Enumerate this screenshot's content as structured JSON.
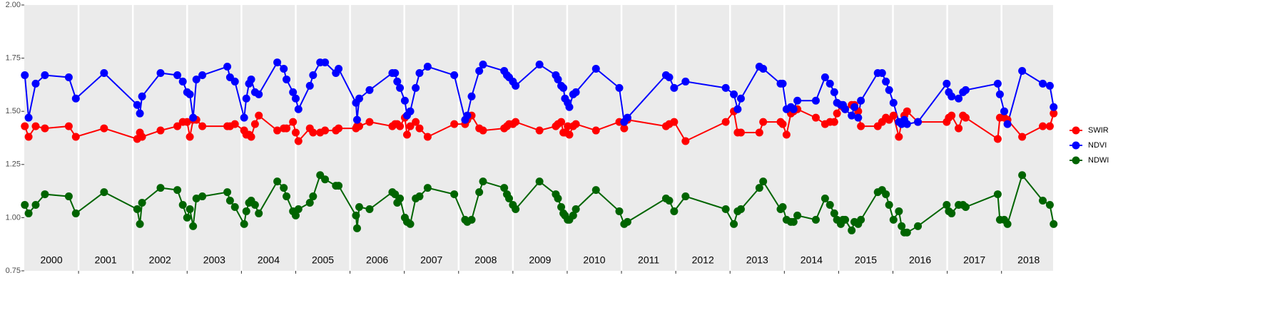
{
  "chart_data": {
    "type": "line",
    "x": [
      2000.01,
      2000.08,
      2000.21,
      2000.38,
      2000.82,
      2000.95,
      2001.47,
      2002.08,
      2002.13,
      2002.17,
      2002.51,
      2002.82,
      2002.92,
      2003.0,
      2003.05,
      2003.11,
      2003.17,
      2003.28,
      2003.74,
      2003.79,
      2003.88,
      2004.05,
      2004.09,
      2004.14,
      2004.18,
      2004.25,
      2004.32,
      2004.66,
      2004.78,
      2004.83,
      2004.95,
      2005.0,
      2005.05,
      2005.26,
      2005.32,
      2005.45,
      2005.54,
      2005.74,
      2005.79,
      2006.11,
      2006.13,
      2006.17,
      2006.36,
      2006.78,
      2006.83,
      2006.87,
      2006.92,
      2007.01,
      2007.05,
      2007.11,
      2007.21,
      2007.28,
      2007.43,
      2007.92,
      2008.12,
      2008.16,
      2008.24,
      2008.38,
      2008.45,
      2008.84,
      2008.89,
      2008.93,
      2009.0,
      2009.05,
      2009.49,
      2009.79,
      2009.83,
      2009.89,
      2009.93,
      2009.96,
      2010.01,
      2010.04,
      2010.11,
      2010.16,
      2010.53,
      2010.96,
      2011.05,
      2011.11,
      2011.82,
      2011.88,
      2011.97,
      2012.18,
      2012.92,
      2013.07,
      2013.14,
      2013.2,
      2013.54,
      2013.61,
      2013.93,
      2013.97,
      2014.04,
      2014.12,
      2014.17,
      2014.24,
      2014.58,
      2014.75,
      2014.84,
      2014.92,
      2014.97,
      2015.04,
      2015.08,
      2015.12,
      2015.24,
      2015.29,
      2015.36,
      2015.41,
      2015.72,
      2015.8,
      2015.87,
      2015.93,
      2016.01,
      2016.11,
      2016.16,
      2016.21,
      2016.26,
      2016.46,
      2016.99,
      2017.03,
      2017.08,
      2017.21,
      2017.29,
      2017.34,
      2017.93,
      2017.97,
      2018.05,
      2018.11,
      2018.38,
      2018.76,
      2018.89,
      2018.96
    ],
    "series": [
      {
        "name": "SWIR",
        "color": "#ff0000",
        "values": [
          1.43,
          1.38,
          1.43,
          1.42,
          1.43,
          1.38,
          1.42,
          1.37,
          1.4,
          1.38,
          1.41,
          1.43,
          1.45,
          1.45,
          1.38,
          1.46,
          1.46,
          1.43,
          1.43,
          1.43,
          1.44,
          1.41,
          1.39,
          1.39,
          1.38,
          1.44,
          1.48,
          1.41,
          1.42,
          1.42,
          1.45,
          1.4,
          1.36,
          1.42,
          1.4,
          1.4,
          1.41,
          1.41,
          1.42,
          1.42,
          1.43,
          1.43,
          1.45,
          1.43,
          1.44,
          1.44,
          1.43,
          1.47,
          1.39,
          1.43,
          1.45,
          1.42,
          1.38,
          1.44,
          1.44,
          1.46,
          1.48,
          1.42,
          1.41,
          1.42,
          1.43,
          1.44,
          1.44,
          1.45,
          1.41,
          1.43,
          1.44,
          1.45,
          1.4,
          1.4,
          1.43,
          1.39,
          1.43,
          1.44,
          1.41,
          1.45,
          1.42,
          1.46,
          1.43,
          1.44,
          1.45,
          1.36,
          1.45,
          1.5,
          1.4,
          1.4,
          1.4,
          1.45,
          1.45,
          1.44,
          1.39,
          1.49,
          1.5,
          1.51,
          1.47,
          1.44,
          1.45,
          1.45,
          1.49,
          1.53,
          1.52,
          1.51,
          1.53,
          1.53,
          1.5,
          1.43,
          1.43,
          1.45,
          1.47,
          1.46,
          1.48,
          1.38,
          1.45,
          1.48,
          1.5,
          1.45,
          1.45,
          1.47,
          1.48,
          1.42,
          1.48,
          1.47,
          1.37,
          1.47,
          1.47,
          1.46,
          1.38,
          1.43,
          1.43,
          1.49
        ]
      },
      {
        "name": "NDVI",
        "color": "#0000ff",
        "values": [
          1.67,
          1.47,
          1.63,
          1.67,
          1.66,
          1.56,
          1.68,
          1.53,
          1.49,
          1.57,
          1.68,
          1.67,
          1.64,
          1.59,
          1.58,
          1.47,
          1.65,
          1.67,
          1.71,
          1.66,
          1.64,
          1.47,
          1.56,
          1.63,
          1.65,
          1.59,
          1.58,
          1.73,
          1.7,
          1.65,
          1.59,
          1.56,
          1.51,
          1.62,
          1.67,
          1.73,
          1.73,
          1.68,
          1.7,
          1.54,
          1.46,
          1.56,
          1.6,
          1.68,
          1.68,
          1.64,
          1.61,
          1.55,
          1.48,
          1.5,
          1.61,
          1.68,
          1.71,
          1.67,
          1.46,
          1.48,
          1.57,
          1.69,
          1.72,
          1.69,
          1.67,
          1.66,
          1.64,
          1.62,
          1.72,
          1.67,
          1.65,
          1.62,
          1.61,
          1.56,
          1.54,
          1.52,
          1.58,
          1.59,
          1.7,
          1.61,
          1.45,
          1.47,
          1.67,
          1.66,
          1.61,
          1.64,
          1.61,
          1.58,
          1.51,
          1.56,
          1.71,
          1.7,
          1.63,
          1.63,
          1.51,
          1.52,
          1.51,
          1.55,
          1.55,
          1.66,
          1.63,
          1.59,
          1.54,
          1.53,
          1.53,
          1.51,
          1.48,
          1.52,
          1.47,
          1.55,
          1.68,
          1.68,
          1.64,
          1.6,
          1.54,
          1.45,
          1.44,
          1.46,
          1.44,
          1.45,
          1.63,
          1.59,
          1.57,
          1.56,
          1.59,
          1.6,
          1.63,
          1.58,
          1.5,
          1.44,
          1.69,
          1.63,
          1.62,
          1.52
        ]
      },
      {
        "name": "NDWI",
        "color": "#006400",
        "values": [
          1.06,
          1.02,
          1.06,
          1.11,
          1.1,
          1.02,
          1.12,
          1.04,
          0.97,
          1.07,
          1.14,
          1.13,
          1.06,
          1.0,
          1.04,
          0.96,
          1.09,
          1.1,
          1.12,
          1.08,
          1.05,
          0.97,
          1.03,
          1.07,
          1.08,
          1.06,
          1.02,
          1.17,
          1.14,
          1.1,
          1.03,
          1.01,
          1.04,
          1.07,
          1.1,
          1.2,
          1.18,
          1.15,
          1.15,
          1.01,
          0.95,
          1.05,
          1.04,
          1.12,
          1.11,
          1.07,
          1.09,
          1.0,
          0.98,
          0.97,
          1.09,
          1.1,
          1.14,
          1.11,
          0.99,
          0.98,
          0.99,
          1.12,
          1.17,
          1.14,
          1.11,
          1.09,
          1.06,
          1.04,
          1.17,
          1.11,
          1.09,
          1.05,
          1.02,
          1.01,
          0.99,
          0.99,
          1.01,
          1.04,
          1.13,
          1.03,
          0.97,
          0.98,
          1.09,
          1.08,
          1.03,
          1.1,
          1.04,
          0.97,
          1.03,
          1.04,
          1.14,
          1.17,
          1.04,
          1.05,
          0.99,
          0.98,
          0.98,
          1.01,
          0.99,
          1.09,
          1.06,
          1.02,
          0.99,
          0.97,
          0.99,
          0.99,
          0.94,
          0.98,
          0.97,
          0.99,
          1.12,
          1.13,
          1.11,
          1.06,
          0.99,
          1.03,
          0.96,
          0.93,
          0.93,
          0.96,
          1.06,
          1.03,
          1.02,
          1.06,
          1.06,
          1.05,
          1.11,
          0.99,
          0.99,
          0.97,
          1.2,
          1.08,
          1.06,
          0.97
        ]
      }
    ],
    "xlim": [
      2000,
      2018.95
    ],
    "xticks": [
      2001,
      2002,
      2003,
      2004,
      2005,
      2006,
      2007,
      2008,
      2009,
      2010,
      2011,
      2012,
      2013,
      2014,
      2015,
      2016,
      2017,
      2018
    ],
    "year_labels": [
      2000,
      2001,
      2002,
      2003,
      2004,
      2005,
      2006,
      2007,
      2008,
      2009,
      2010,
      2011,
      2012,
      2013,
      2014,
      2015,
      2016,
      2017,
      2018
    ],
    "ylim": [
      0.75,
      2
    ],
    "yticks": [
      0.75,
      {
        "value": 1,
        "label": "1.00"
      },
      1.25,
      {
        "value": 1.5,
        "label": "1.50"
      },
      1.75,
      {
        "value": 2,
        "label": "2.00"
      }
    ],
    "legend": "right",
    "grid": true
  }
}
